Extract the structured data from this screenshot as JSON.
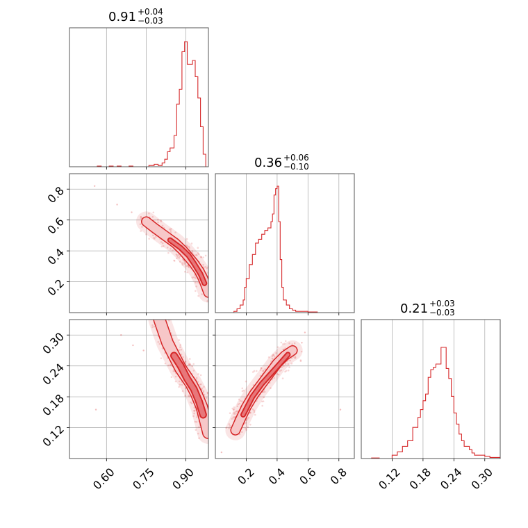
{
  "color": "#d62728",
  "chart_data": {
    "type": "corner",
    "parameters": [
      {
        "title_value": "0.91",
        "title_plus": "+0.04",
        "title_minus": "−0.03",
        "range": [
          0.46,
          0.985
        ],
        "ticks": [
          0.6,
          0.75,
          0.9
        ],
        "tick_labels": [
          "0.60",
          "0.75",
          "0.90"
        ]
      },
      {
        "title_value": "0.36",
        "title_plus": "+0.06",
        "title_minus": "−0.10",
        "range": [
          0.0,
          0.9
        ],
        "ticks": [
          0.2,
          0.4,
          0.6,
          0.8
        ],
        "tick_labels": [
          "0.2",
          "0.4",
          "0.6",
          "0.8"
        ]
      },
      {
        "title_value": "0.21",
        "title_plus": "+0.03",
        "title_minus": "−0.03",
        "range": [
          0.06,
          0.33
        ],
        "ticks": [
          0.12,
          0.18,
          0.24,
          0.3
        ],
        "tick_labels": [
          "0.12",
          "0.18",
          "0.24",
          "0.30"
        ]
      }
    ],
    "histograms": [
      {
        "bins": [
          [
            0.46,
            0
          ],
          [
            0.565,
            0.005
          ],
          [
            0.58,
            0
          ],
          [
            0.61,
            0.005
          ],
          [
            0.625,
            0
          ],
          [
            0.64,
            0.005
          ],
          [
            0.655,
            0
          ],
          [
            0.685,
            0.005
          ],
          [
            0.7,
            0
          ],
          [
            0.76,
            0.01
          ],
          [
            0.78,
            0.02
          ],
          [
            0.795,
            0.01
          ],
          [
            0.81,
            0.03
          ],
          [
            0.82,
            0.06
          ],
          [
            0.83,
            0.12
          ],
          [
            0.84,
            0.15
          ],
          [
            0.855,
            0.25
          ],
          [
            0.865,
            0.5
          ],
          [
            0.875,
            0.62
          ],
          [
            0.885,
            0.92
          ],
          [
            0.895,
            1.0
          ],
          [
            0.905,
            0.82
          ],
          [
            0.915,
            0.82
          ],
          [
            0.925,
            0.85
          ],
          [
            0.935,
            0.72
          ],
          [
            0.945,
            0.55
          ],
          [
            0.955,
            0.32
          ],
          [
            0.965,
            0.1
          ],
          [
            0.975,
            0
          ]
        ]
      },
      {
        "bins": [
          [
            0.0,
            0
          ],
          [
            0.12,
            0.01
          ],
          [
            0.14,
            0.03
          ],
          [
            0.16,
            0.06
          ],
          [
            0.18,
            0.1
          ],
          [
            0.19,
            0.2
          ],
          [
            0.2,
            0.27
          ],
          [
            0.22,
            0.38
          ],
          [
            0.24,
            0.46
          ],
          [
            0.26,
            0.55
          ],
          [
            0.28,
            0.58
          ],
          [
            0.3,
            0.62
          ],
          [
            0.32,
            0.65
          ],
          [
            0.34,
            0.67
          ],
          [
            0.36,
            0.72
          ],
          [
            0.37,
            0.78
          ],
          [
            0.38,
            0.93
          ],
          [
            0.39,
            0.98
          ],
          [
            0.4,
            1.0
          ],
          [
            0.41,
            0.72
          ],
          [
            0.42,
            0.42
          ],
          [
            0.43,
            0.2
          ],
          [
            0.44,
            0.1
          ],
          [
            0.46,
            0.06
          ],
          [
            0.48,
            0.03
          ],
          [
            0.5,
            0.02
          ],
          [
            0.52,
            0.01
          ],
          [
            0.6,
            0.005
          ],
          [
            0.66,
            0
          ]
        ]
      },
      {
        "bins": [
          [
            0.06,
            0
          ],
          [
            0.08,
            0.005
          ],
          [
            0.095,
            0
          ],
          [
            0.12,
            0.03
          ],
          [
            0.13,
            0.06
          ],
          [
            0.14,
            0.11
          ],
          [
            0.15,
            0.16
          ],
          [
            0.16,
            0.28
          ],
          [
            0.17,
            0.37
          ],
          [
            0.175,
            0.44
          ],
          [
            0.18,
            0.52
          ],
          [
            0.185,
            0.58
          ],
          [
            0.19,
            0.73
          ],
          [
            0.195,
            0.8
          ],
          [
            0.2,
            0.82
          ],
          [
            0.205,
            0.85
          ],
          [
            0.21,
            0.85
          ],
          [
            0.215,
            1.0
          ],
          [
            0.22,
            1.0
          ],
          [
            0.225,
            0.81
          ],
          [
            0.23,
            0.72
          ],
          [
            0.235,
            0.56
          ],
          [
            0.24,
            0.41
          ],
          [
            0.245,
            0.31
          ],
          [
            0.25,
            0.22
          ],
          [
            0.255,
            0.16
          ],
          [
            0.26,
            0.11
          ],
          [
            0.27,
            0.08
          ],
          [
            0.275,
            0.05
          ],
          [
            0.28,
            0.03
          ],
          [
            0.3,
            0.02
          ],
          [
            0.31,
            0.01
          ],
          [
            0.33,
            0
          ]
        ]
      }
    ],
    "pairs": [
      {
        "x": 0,
        "y": 1,
        "ridge": [
          [
            0.75,
            0.59
          ],
          [
            0.78,
            0.55
          ],
          [
            0.82,
            0.5
          ],
          [
            0.86,
            0.45
          ],
          [
            0.89,
            0.4
          ],
          [
            0.91,
            0.36
          ],
          [
            0.93,
            0.32
          ],
          [
            0.95,
            0.27
          ],
          [
            0.965,
            0.22
          ],
          [
            0.985,
            0.13
          ]
        ],
        "core": [
          [
            0.84,
            0.47
          ],
          [
            0.88,
            0.42
          ],
          [
            0.91,
            0.37
          ],
          [
            0.93,
            0.32
          ],
          [
            0.955,
            0.25
          ],
          [
            0.97,
            0.19
          ]
        ],
        "outliers": [
          [
            0.555,
            0.82
          ],
          [
            0.64,
            0.7
          ],
          [
            0.695,
            0.65
          ],
          [
            0.73,
            0.62
          ],
          [
            0.76,
            0.6
          ]
        ]
      },
      {
        "x": 1,
        "y": 2,
        "ridge": [
          [
            0.13,
            0.115
          ],
          [
            0.16,
            0.135
          ],
          [
            0.2,
            0.16
          ],
          [
            0.25,
            0.185
          ],
          [
            0.3,
            0.205
          ],
          [
            0.35,
            0.225
          ],
          [
            0.4,
            0.245
          ],
          [
            0.45,
            0.26
          ],
          [
            0.5,
            0.27
          ]
        ],
        "core": [
          [
            0.18,
            0.145
          ],
          [
            0.24,
            0.18
          ],
          [
            0.3,
            0.205
          ],
          [
            0.36,
            0.225
          ],
          [
            0.42,
            0.245
          ],
          [
            0.47,
            0.262
          ]
        ],
        "outliers": [
          [
            0.04,
            0.072
          ],
          [
            0.81,
            0.155
          ],
          [
            0.58,
            0.305
          ],
          [
            0.56,
            0.285
          ],
          [
            0.12,
            0.108
          ]
        ]
      },
      {
        "x": 0,
        "y": 2,
        "ridge": [
          [
            0.8,
            0.33
          ],
          [
            0.83,
            0.285
          ],
          [
            0.86,
            0.255
          ],
          [
            0.88,
            0.235
          ],
          [
            0.9,
            0.22
          ],
          [
            0.92,
            0.205
          ],
          [
            0.94,
            0.185
          ],
          [
            0.96,
            0.16
          ],
          [
            0.975,
            0.13
          ],
          [
            0.985,
            0.11
          ]
        ],
        "core": [
          [
            0.855,
            0.26
          ],
          [
            0.88,
            0.24
          ],
          [
            0.905,
            0.215
          ],
          [
            0.93,
            0.195
          ],
          [
            0.95,
            0.17
          ],
          [
            0.965,
            0.145
          ]
        ],
        "outliers": [
          [
            0.56,
            0.155
          ],
          [
            0.655,
            0.3
          ],
          [
            0.7,
            0.28
          ],
          [
            0.74,
            0.27
          ]
        ]
      }
    ]
  }
}
